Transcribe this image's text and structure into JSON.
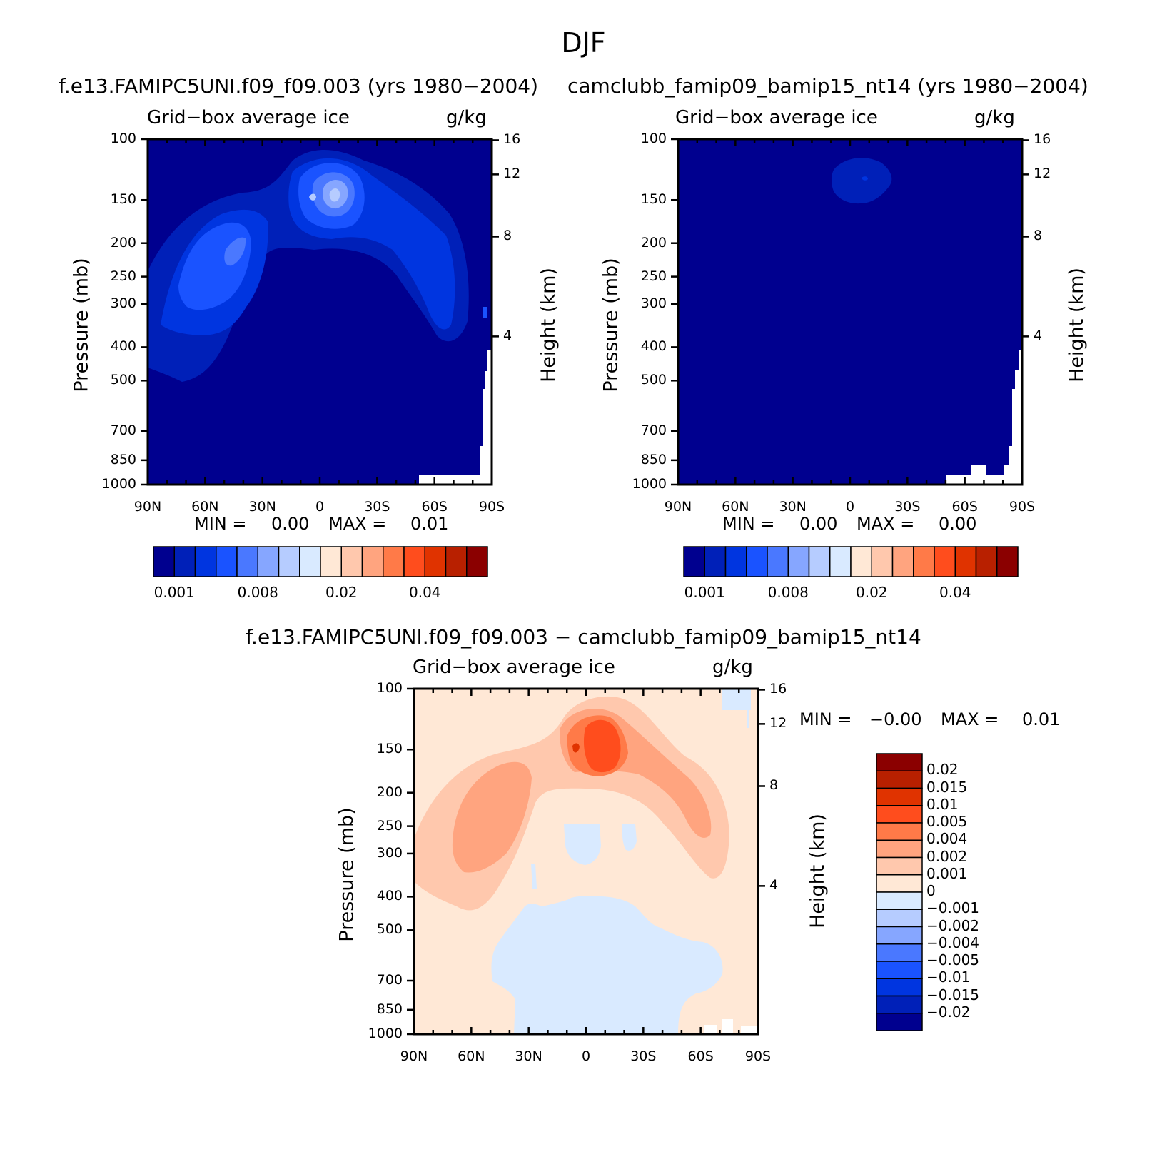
{
  "figure": {
    "title": "DJF"
  },
  "chart_data": [
    {
      "type": "heatmap",
      "title": "f.e13.FAMIPC5UNI.f09_f09.003 (yrs 1980−2004)",
      "subtitle_left": "Grid−box average ice",
      "subtitle_right": "g/kg",
      "xlabel": "",
      "ylabel": "Pressure (mb)",
      "y2label": "Height (km)",
      "x_ticks": [
        "90N",
        "60N",
        "30N",
        "0",
        "30S",
        "60S",
        "90S"
      ],
      "y_ticks": [
        "100",
        "150",
        "200",
        "250",
        "300",
        "400",
        "500",
        "700",
        "850",
        "1000"
      ],
      "y2_ticks": [
        "16",
        "12",
        "8",
        "4"
      ],
      "min_label": "MIN =",
      "min_value": "0.00",
      "max_label": "MAX =",
      "max_value": "0.01",
      "colorbar_colors": [
        "#00008f",
        "#0020b8",
        "#0035e0",
        "#1a53ff",
        "#4a78ff",
        "#86a6ff",
        "#b6ccff",
        "#d9eaff",
        "#ffe8d6",
        "#ffc8ad",
        "#ffa47f",
        "#ff7a48",
        "#ff4d1d",
        "#e03300",
        "#b82000",
        "#8b0000"
      ],
      "colorbar_labels": [
        "0.001",
        "0.008",
        "0.02",
        "0.04"
      ]
    },
    {
      "type": "heatmap",
      "title": "camclubb_famip09_bamip15_nt14 (yrs 1980−2004)",
      "subtitle_left": "Grid−box average ice",
      "subtitle_right": "g/kg",
      "xlabel": "",
      "ylabel": "Pressure (mb)",
      "y2label": "Height (km)",
      "x_ticks": [
        "90N",
        "60N",
        "30N",
        "0",
        "30S",
        "60S",
        "90S"
      ],
      "y_ticks": [
        "100",
        "150",
        "200",
        "250",
        "300",
        "400",
        "500",
        "700",
        "850",
        "1000"
      ],
      "y2_ticks": [
        "16",
        "12",
        "8",
        "4"
      ],
      "min_label": "MIN =",
      "min_value": "0.00",
      "max_label": "MAX =",
      "max_value": "0.00",
      "colorbar_colors": [
        "#00008f",
        "#0020b8",
        "#0035e0",
        "#1a53ff",
        "#4a78ff",
        "#86a6ff",
        "#b6ccff",
        "#d9eaff",
        "#ffe8d6",
        "#ffc8ad",
        "#ffa47f",
        "#ff7a48",
        "#ff4d1d",
        "#e03300",
        "#b82000",
        "#8b0000"
      ],
      "colorbar_labels": [
        "0.001",
        "0.008",
        "0.02",
        "0.04"
      ]
    },
    {
      "type": "heatmap",
      "title": "f.e13.FAMIPC5UNI.f09_f09.003 − camclubb_famip09_bamip15_nt14",
      "subtitle_left": "Grid−box average ice",
      "subtitle_right": "g/kg",
      "xlabel": "",
      "ylabel": "Pressure (mb)",
      "y2label": "Height (km)",
      "x_ticks": [
        "90N",
        "60N",
        "30N",
        "0",
        "30S",
        "60S",
        "90S"
      ],
      "y_ticks": [
        "100",
        "150",
        "200",
        "250",
        "300",
        "400",
        "500",
        "700",
        "850",
        "1000"
      ],
      "y2_ticks": [
        "16",
        "12",
        "8",
        "4"
      ],
      "min_label": "MIN =",
      "min_value": "−0.00",
      "max_label": "MAX =",
      "max_value": "0.01",
      "colorbar_colors": [
        "#8b0000",
        "#b82000",
        "#e03300",
        "#ff4d1d",
        "#ff7a48",
        "#ffa47f",
        "#ffc8ad",
        "#ffe8d6",
        "#d9eaff",
        "#b6ccff",
        "#86a6ff",
        "#4a78ff",
        "#1a53ff",
        "#0035e0",
        "#0020b8",
        "#00008f"
      ],
      "colorbar_labels": [
        "0.02",
        "0.015",
        "0.01",
        "0.005",
        "0.004",
        "0.002",
        "0.001",
        "0",
        "−0.001",
        "−0.002",
        "−0.004",
        "−0.005",
        "−0.01",
        "−0.015",
        "−0.02"
      ]
    }
  ]
}
